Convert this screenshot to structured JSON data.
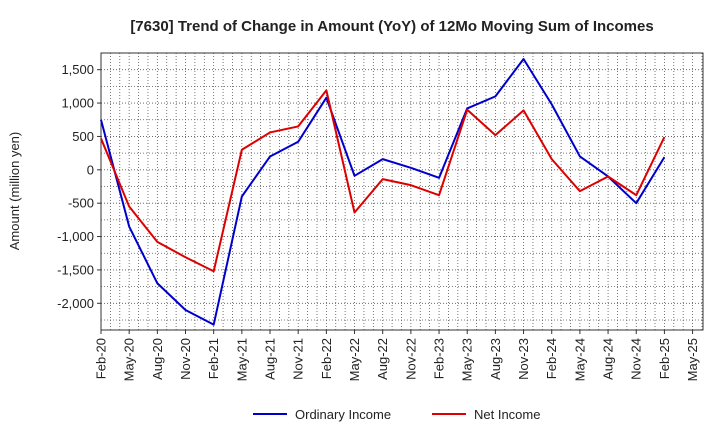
{
  "chart_data": {
    "type": "line",
    "title": "[7630]  Trend of Change in Amount (YoY) of 12Mo Moving Sum of Incomes",
    "xlabel": "",
    "ylabel": "Amount (million yen)",
    "ylim": [
      -2400,
      1750
    ],
    "yticks": [
      1500,
      1000,
      500,
      0,
      -500,
      -1000,
      -1500,
      -2000
    ],
    "ytick_labels": [
      "1,500",
      "1,000",
      "500",
      "0",
      "-500",
      "-1,000",
      "-1,500",
      "-2,000"
    ],
    "x_tick_labels": [
      "Feb-20",
      "May-20",
      "Aug-20",
      "Nov-20",
      "Feb-21",
      "May-21",
      "Aug-21",
      "Nov-21",
      "Feb-22",
      "May-22",
      "Aug-22",
      "Nov-22",
      "Feb-23",
      "May-23",
      "Aug-23",
      "Nov-23",
      "Feb-24",
      "May-24",
      "Aug-24",
      "Nov-24",
      "Feb-25",
      "May-25"
    ],
    "x": [
      "Feb-20",
      "May-20",
      "Aug-20",
      "Nov-20",
      "Feb-21",
      "May-21",
      "Aug-21",
      "Nov-21",
      "Feb-22",
      "May-22",
      "Aug-22",
      "Nov-22",
      "Feb-23",
      "May-23",
      "Aug-23",
      "Nov-23",
      "Feb-24",
      "May-24",
      "Aug-24",
      "Nov-24",
      "Feb-25"
    ],
    "grid": true,
    "legend_position": "bottom",
    "series": [
      {
        "name": "Ordinary Income",
        "color": "#0000cc",
        "values": [
          750,
          -850,
          -1700,
          -2100,
          -2320,
          -400,
          200,
          420,
          1080,
          -90,
          160,
          30,
          -120,
          920,
          1100,
          1660,
          980,
          200,
          -100,
          -500,
          190
        ]
      },
      {
        "name": "Net Income",
        "color": "#dd0000",
        "values": [
          470,
          -550,
          -1080,
          -1310,
          -1520,
          300,
          560,
          650,
          1190,
          -640,
          -140,
          -230,
          -380,
          900,
          520,
          890,
          160,
          -320,
          -100,
          -380,
          490
        ]
      }
    ]
  }
}
